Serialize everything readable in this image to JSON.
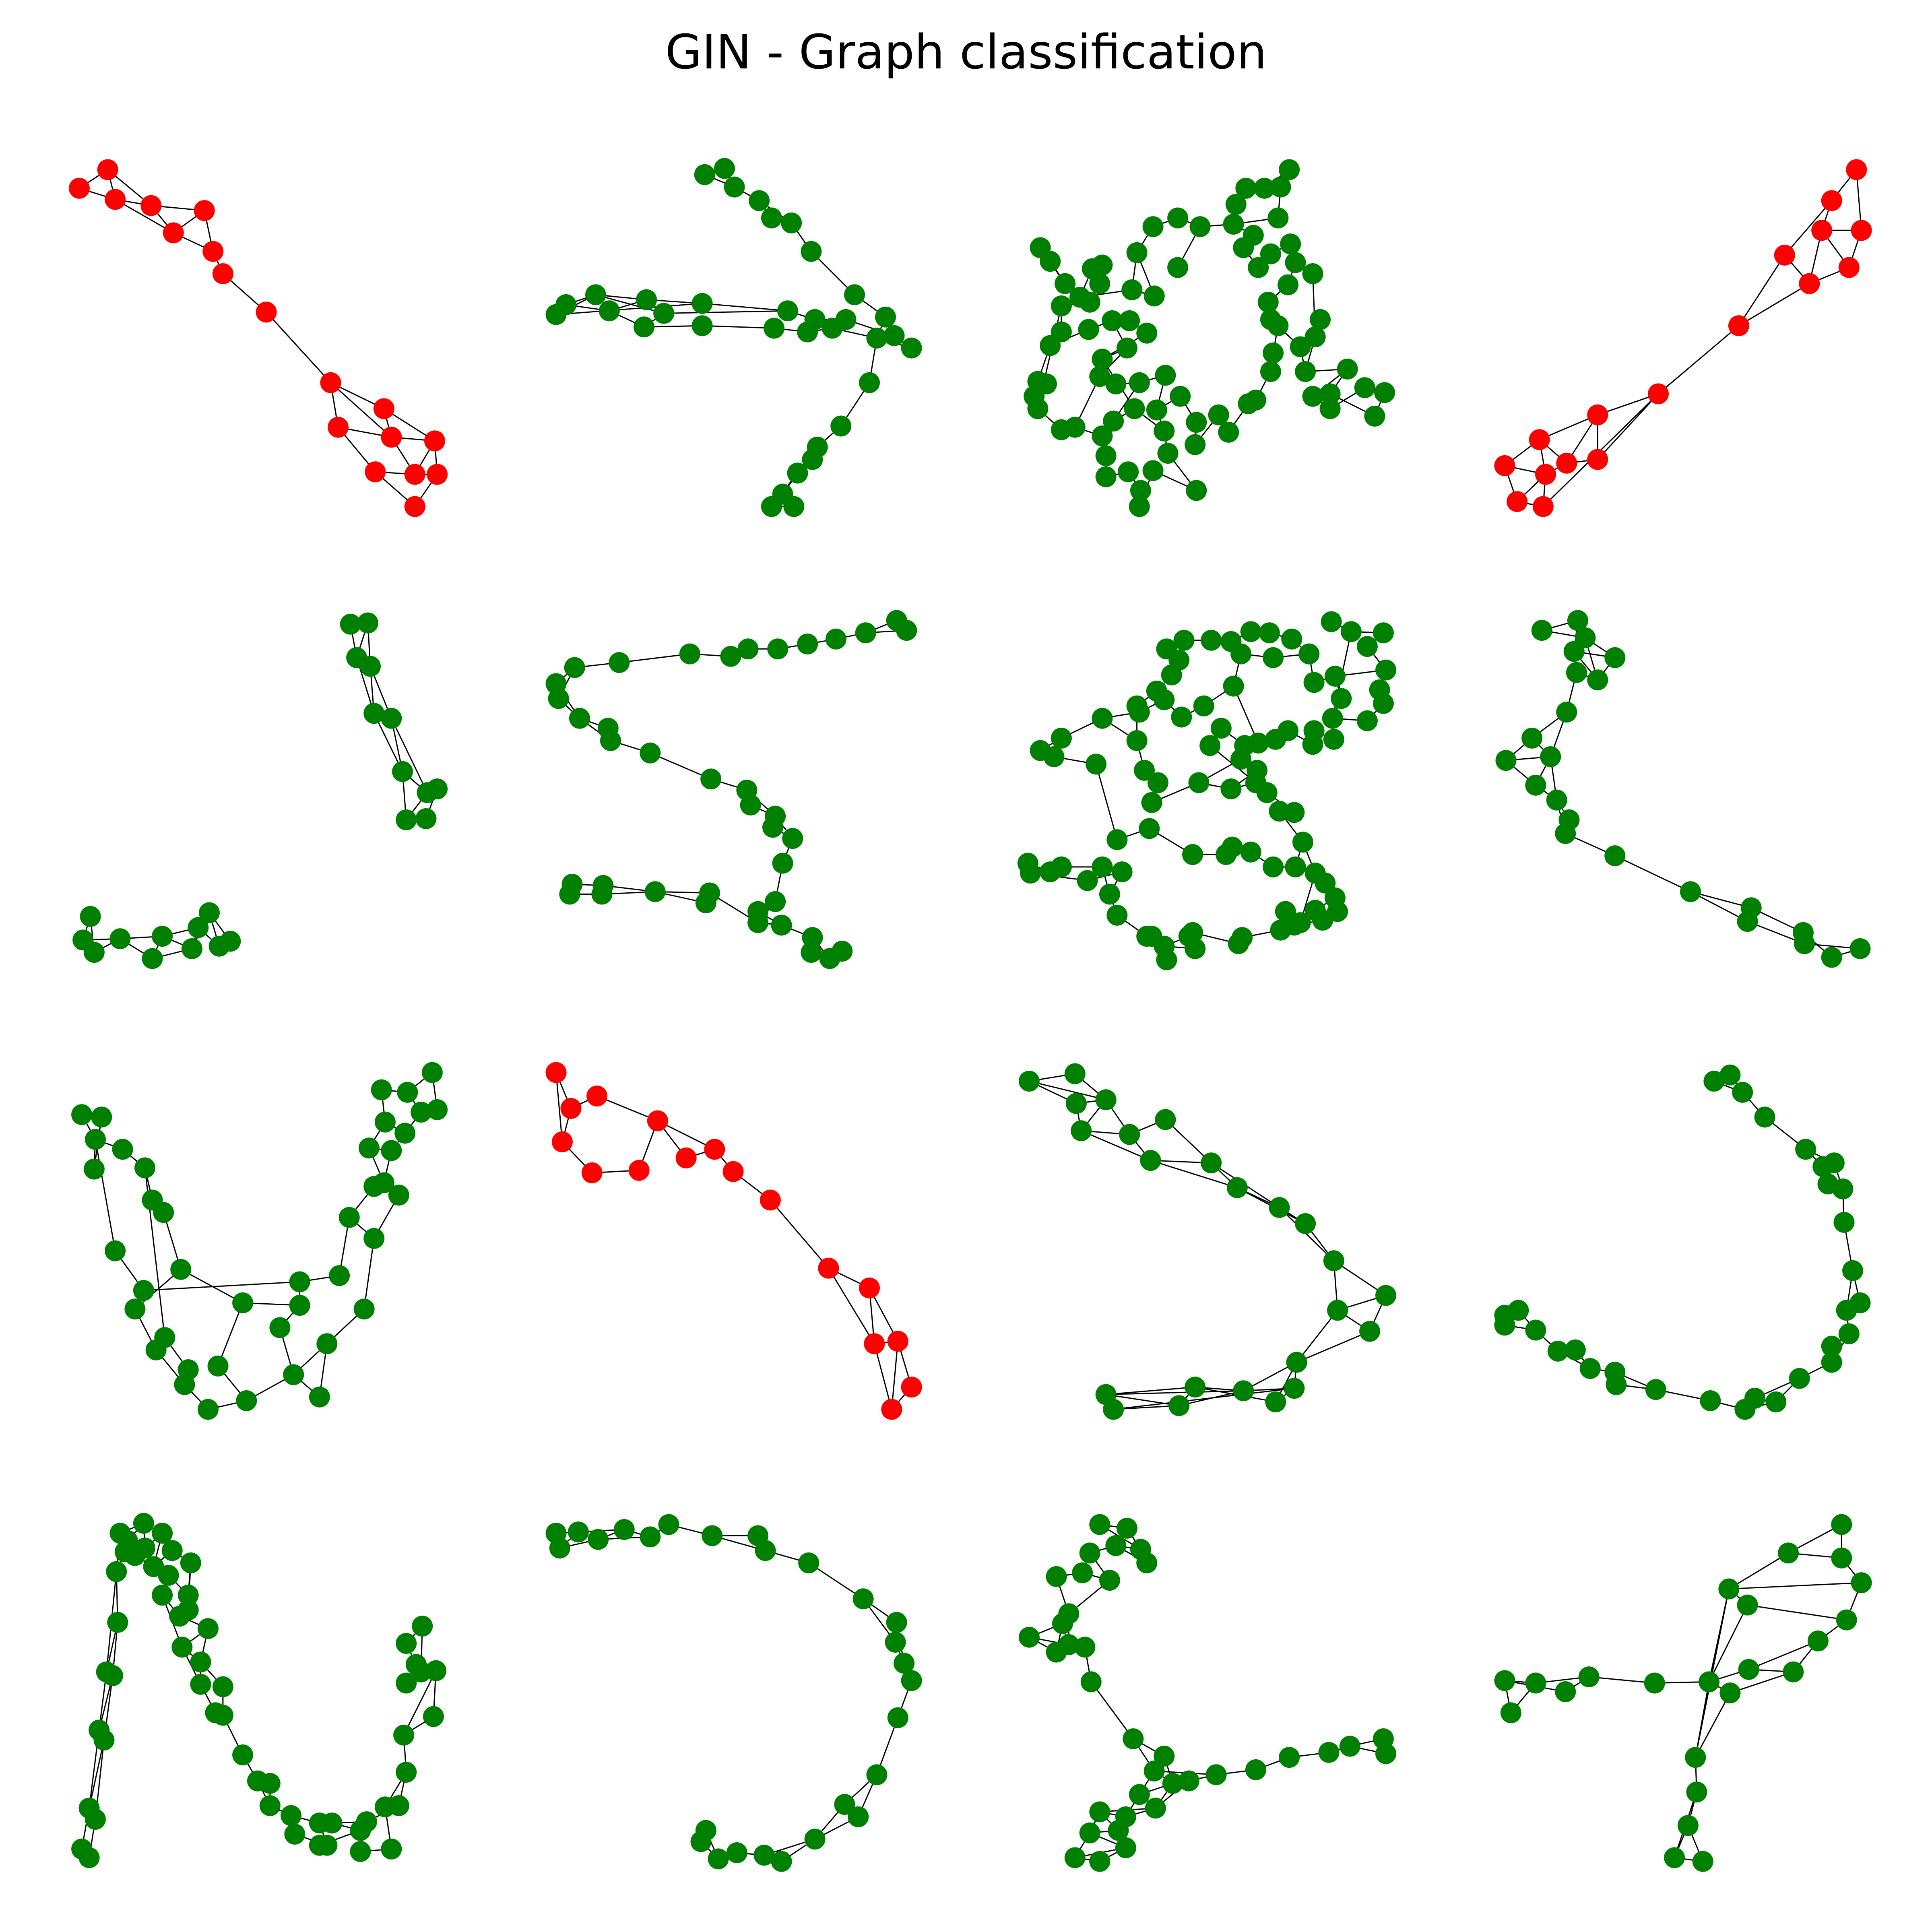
{
  "title": "GIN - Graph classification",
  "colors": {
    "class_red": "#ff0000",
    "class_green": "#008000",
    "edge": "#000000",
    "background": "#ffffff"
  },
  "grid": {
    "rows": 4,
    "cols": 4
  },
  "graphs": [
    {
      "row": 0,
      "col": 0,
      "predicted_class": "red",
      "shape": "two clusters joined by a chain"
    },
    {
      "row": 0,
      "col": 1,
      "predicted_class": "green",
      "shape": "arrow / branching chains"
    },
    {
      "row": 0,
      "col": 2,
      "predicted_class": "green",
      "shape": "dense ring"
    },
    {
      "row": 0,
      "col": 3,
      "predicted_class": "red",
      "shape": "two clusters joined by a chain"
    },
    {
      "row": 1,
      "col": 0,
      "predicted_class": "green",
      "shape": "two separate short chains"
    },
    {
      "row": 1,
      "col": 1,
      "predicted_class": "green",
      "shape": "zig-zag chain"
    },
    {
      "row": 1,
      "col": 2,
      "predicted_class": "green",
      "shape": "dense zig-zag"
    },
    {
      "row": 1,
      "col": 3,
      "predicted_class": "green",
      "shape": "curved chain"
    },
    {
      "row": 2,
      "col": 0,
      "predicted_class": "green",
      "shape": "V ladder"
    },
    {
      "row": 2,
      "col": 1,
      "predicted_class": "red",
      "shape": "curved chain with clusters"
    },
    {
      "row": 2,
      "col": 2,
      "predicted_class": "green",
      "shape": "folded ladder"
    },
    {
      "row": 2,
      "col": 3,
      "predicted_class": "green",
      "shape": "U-shaped chain"
    },
    {
      "row": 3,
      "col": 0,
      "predicted_class": "green",
      "shape": "N-shaped ladder"
    },
    {
      "row": 3,
      "col": 1,
      "predicted_class": "green",
      "shape": "arc"
    },
    {
      "row": 3,
      "col": 2,
      "predicted_class": "green",
      "shape": "S-shaped chain"
    },
    {
      "row": 3,
      "col": 3,
      "predicted_class": "green",
      "shape": "crossing loop"
    }
  ]
}
